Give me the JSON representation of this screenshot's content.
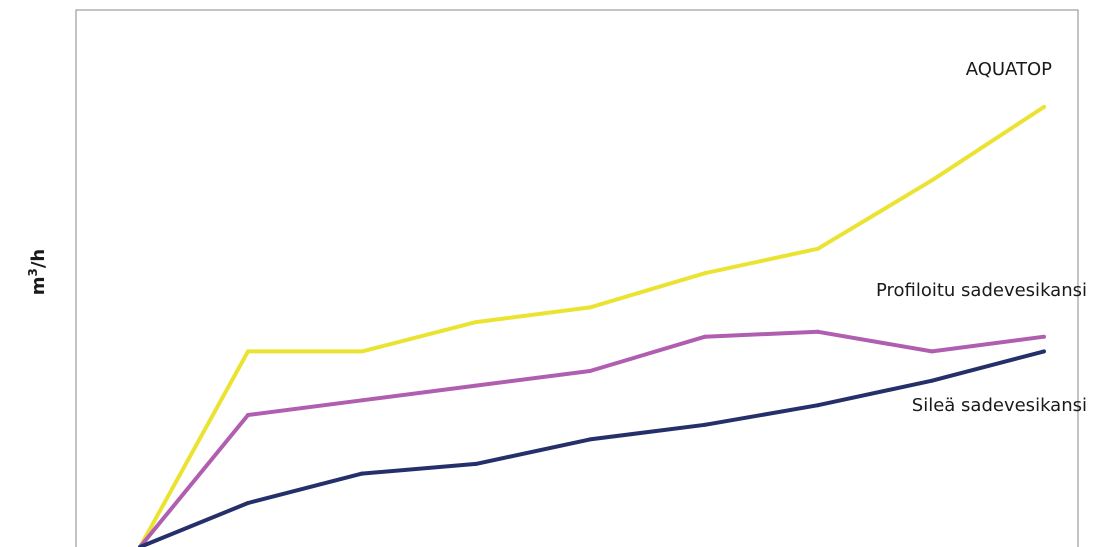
{
  "chart_data": {
    "type": "line",
    "title": "",
    "ylabel_base": "m",
    "ylabel_sup": "3",
    "ylabel_tail": "/h",
    "xlabel": "",
    "x": [
      0,
      1,
      2,
      3,
      4,
      5,
      6,
      7,
      8
    ],
    "ylim": [
      0,
      100
    ],
    "grid": false,
    "series": [
      {
        "name": "AQUATOP",
        "color": "#ebe332",
        "values": [
          0,
          40,
          40,
          46,
          49,
          56,
          61,
          75,
          90
        ]
      },
      {
        "name": "Profiloitu sadevesikansi",
        "color": "#b05eb0",
        "values": [
          0,
          27,
          30,
          33,
          36,
          43,
          44,
          40,
          43
        ]
      },
      {
        "name": "Sileä sadevesikansi",
        "color": "#25306a",
        "values": [
          0,
          9,
          15,
          17,
          22,
          25,
          29,
          34,
          40
        ]
      }
    ]
  }
}
